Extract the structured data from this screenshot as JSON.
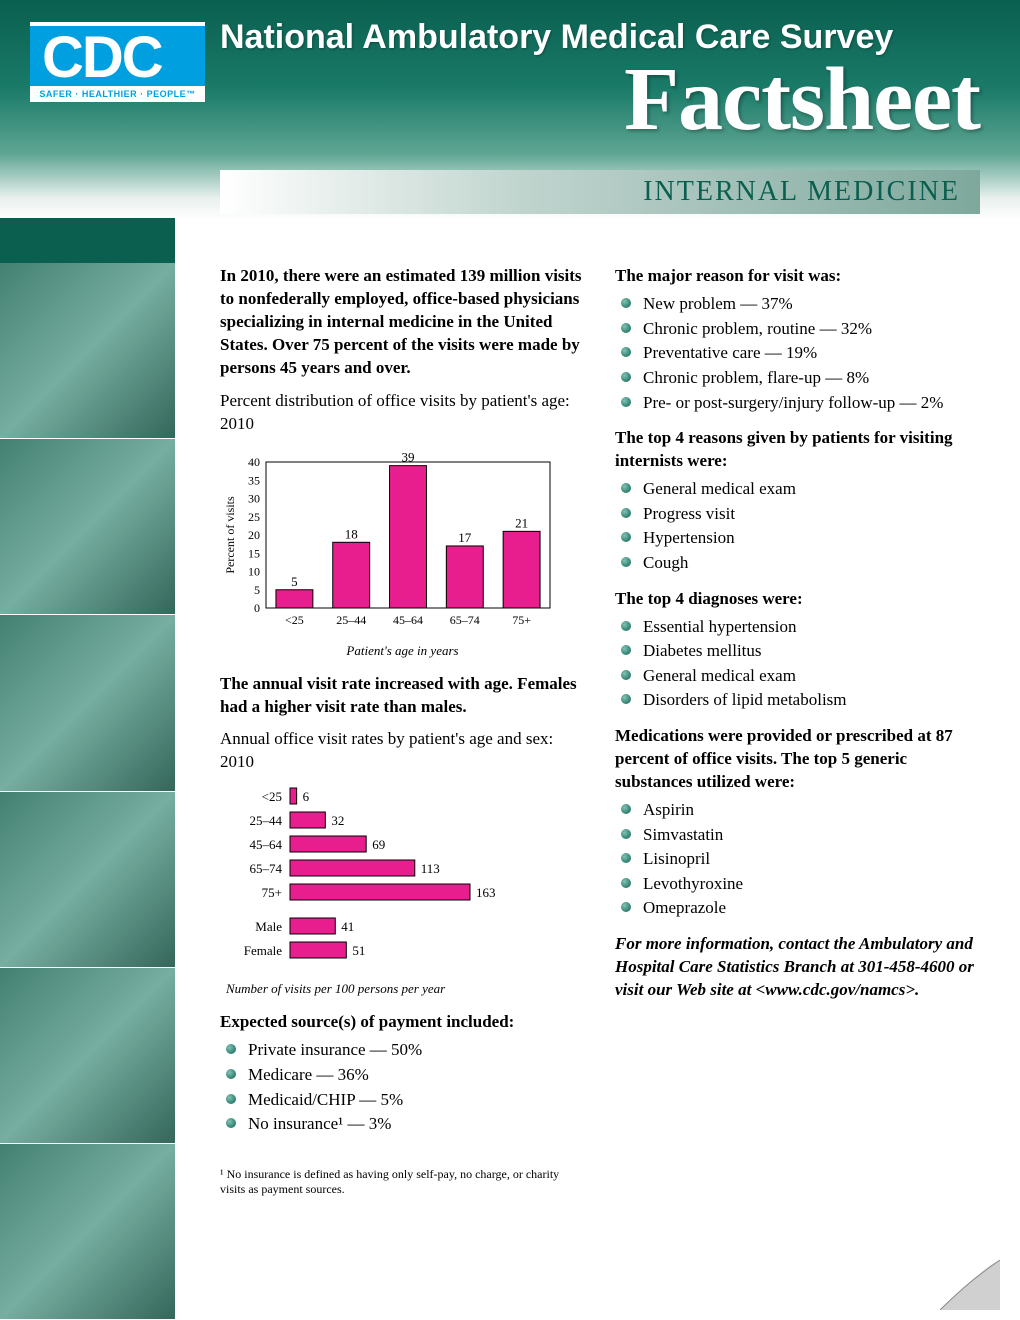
{
  "header": {
    "cdc": "CDC",
    "cdc_tag": "SAFER · HEALTHIER · PEOPLE™",
    "survey": "National Ambulatory Medical Care Survey",
    "factsheet": "Factsheet",
    "subtitle": "INTERNAL MEDICINE",
    "colors": {
      "bg_top": "#0a5f4f",
      "bg_mid": "#5fa593",
      "cdc_blue": "#00a0e0"
    }
  },
  "left": {
    "lead": "In 2010, there were an estimated 139 million visits to nonfederally employed, office-based physicians specializing in internal medicine in the United States. Over 75 percent of the visits were made by persons 45 years and over.",
    "chart1_title": "Percent distribution of office visits by patient's age: 2010",
    "chart1": {
      "type": "bar",
      "categories": [
        "<25",
        "25–44",
        "45–64",
        "65–74",
        "75+"
      ],
      "values": [
        5,
        18,
        39,
        17,
        21
      ],
      "bar_color": "#e91e8e",
      "bar_border": "#000000",
      "ylabel": "Percent of visits",
      "xlabel": "Patient's age in years",
      "ylim": [
        0,
        40
      ],
      "ytick_step": 5,
      "label_fontsize": 12,
      "value_fontsize": 13,
      "bar_width": 0.65,
      "background": "#ffffff"
    },
    "mid_bold": "The annual visit rate increased with age. Females had a higher visit rate than males.",
    "chart2_title": "Annual office visit rates by patient's age and sex: 2010",
    "chart2": {
      "type": "hbar",
      "groups": [
        {
          "label": "<25",
          "value": 6
        },
        {
          "label": "25–44",
          "value": 32
        },
        {
          "label": "45–64",
          "value": 69
        },
        {
          "label": "65–74",
          "value": 113
        },
        {
          "label": "75+",
          "value": 163
        }
      ],
      "sex": [
        {
          "label": "Male",
          "value": 41
        },
        {
          "label": "Female",
          "value": 51
        }
      ],
      "bar_color": "#e91e8e",
      "bar_border": "#000000",
      "max": 163,
      "caption": "Number of visits per 100 persons per year",
      "label_fontsize": 13,
      "value_fontsize": 13
    },
    "payment_head": "Expected source(s) of payment included:",
    "payment_items": [
      "Private insurance — 50%",
      "Medicare — 36%",
      "Medicaid/CHIP — 5%",
      "No insurance¹ — 3%"
    ],
    "footnote": "¹ No insurance is defined as having only self-pay, no charge, or charity visits as payment sources."
  },
  "right": {
    "reason_head": "The major reason for visit was:",
    "reason_items": [
      "New problem — 37%",
      "Chronic problem, routine — 32%",
      "Preventative care — 19%",
      "Chronic problem, flare-up — 8%",
      "Pre- or post-surgery/injury follow-up — 2%"
    ],
    "top4r_head": "The top 4 reasons given by patients for visiting internists were:",
    "top4r_items": [
      "General medical exam",
      "Progress visit",
      "Hypertension",
      "Cough"
    ],
    "diag_head": "The top 4 diagnoses were:",
    "diag_items": [
      "Essential hypertension",
      "Diabetes mellitus",
      "General medical exam",
      "Disorders of lipid metabolism"
    ],
    "med_head": "Medications were provided or prescribed at 87 percent of office visits. The top 5 generic substances utilized were:",
    "med_items": [
      "Aspirin",
      "Simvastatin",
      "Lisinopril",
      "Levothyroxine",
      "Omeprazole"
    ],
    "contact": "For more information, contact the Ambulatory and Hospital Care Statistics Branch at 301-458-4600 or visit our Web site at <www.cdc.gov/namcs>."
  }
}
